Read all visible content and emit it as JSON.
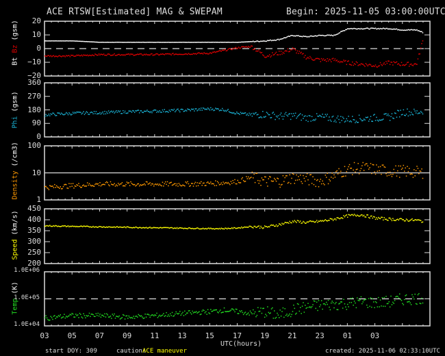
{
  "header": {
    "title": "ACE RTSW[Estimated] MAG & SWEPAM",
    "begin": "Begin: 2025-11-05 03:00:00UTC"
  },
  "footer": {
    "start_doy": "start DOY: 309",
    "caution_label": "caution:",
    "caution_value": "ACE maneuver",
    "created": "created: 2025-11-06 02:33:10UTC",
    "xaxis_label": "UTC(hours)"
  },
  "colors": {
    "bt": "#ffffff",
    "bz": "#e00000",
    "phi": "#1ab2d4",
    "density": "#ff9900",
    "speed": "#ffff00",
    "temp": "#22dd22",
    "axes": "#dddddd"
  },
  "x_ticks": [
    "03",
    "05",
    "07",
    "09",
    "11",
    "13",
    "15",
    "17",
    "19",
    "21",
    "23",
    "01",
    "03"
  ],
  "panels": [
    {
      "id": "mag",
      "ylabel_parts": [
        "Bt",
        "Bz",
        "(gsm)"
      ],
      "ticks": [
        "20",
        "10",
        "0",
        "−10",
        "−20"
      ]
    },
    {
      "id": "phi",
      "ylabel_parts": [
        "Phi",
        "(gsm)"
      ],
      "ticks": [
        "360",
        "270",
        "180",
        "90",
        "0"
      ]
    },
    {
      "id": "density",
      "ylabel_parts": [
        "Density",
        "(/cm3)"
      ],
      "ticks": [
        "100",
        "10",
        "1"
      ]
    },
    {
      "id": "speed",
      "ylabel_parts": [
        "Speed",
        "(km/s)"
      ],
      "ticks": [
        "450",
        "400",
        "350",
        "300",
        "250",
        "200"
      ]
    },
    {
      "id": "temp",
      "ylabel_parts": [
        "Temp",
        "(K)"
      ],
      "ticks": [
        "1.0E+06",
        "1.0E+05",
        "1.0E+04"
      ]
    }
  ],
  "chart_data": [
    {
      "type": "line",
      "title": "Bt / Bz (gsm)",
      "ylabel": "Bt Bz (gsm)",
      "xlabel": "UTC(hours)",
      "ylim": [
        -20,
        20
      ],
      "reference_line": 0,
      "x": [
        0,
        2,
        4,
        6,
        8,
        10,
        12,
        13,
        14,
        15,
        16,
        17,
        18,
        19,
        20,
        21,
        22,
        23,
        24,
        25,
        26,
        27,
        27.5
      ],
      "series": [
        {
          "name": "Bt",
          "values": [
            6,
            6,
            5,
            5,
            5,
            5,
            5,
            5,
            5,
            5.5,
            6,
            7,
            10,
            9,
            10,
            10,
            15,
            15,
            15,
            15,
            14,
            14,
            12
          ]
        },
        {
          "name": "Bz",
          "values": [
            -5,
            -5,
            -4,
            -4,
            -4,
            -3.5,
            -3,
            -1,
            1,
            2,
            -5,
            -3,
            0,
            -6,
            -8,
            -8,
            -10,
            -11,
            -12,
            -10,
            -11,
            -11,
            8
          ]
        }
      ]
    },
    {
      "type": "scatter",
      "title": "Phi (gsm)",
      "ylabel": "Phi (gsm)",
      "ylim": [
        0,
        360
      ],
      "x": [
        0,
        2,
        4,
        6,
        8,
        10,
        12,
        13,
        14,
        15,
        16,
        17,
        18,
        19,
        20,
        21,
        22,
        23,
        24,
        25,
        26,
        27,
        27.5
      ],
      "series": [
        {
          "name": "Phi",
          "values": [
            150,
            160,
            165,
            170,
            175,
            180,
            190,
            185,
            160,
            150,
            155,
            140,
            145,
            130,
            135,
            125,
            120,
            125,
            130,
            135,
            170,
            165,
            180
          ]
        }
      ]
    },
    {
      "type": "scatter",
      "title": "Density (/cm3)",
      "ylabel": "Density (/cm3)",
      "yscale": "log",
      "ylim": [
        1,
        100
      ],
      "reference_line": 10,
      "x": [
        0,
        2,
        4,
        6,
        8,
        10,
        12,
        13,
        14,
        15,
        16,
        17,
        18,
        19,
        20,
        21,
        22,
        23,
        24,
        25,
        26,
        27,
        27.5
      ],
      "series": [
        {
          "name": "Density",
          "values": [
            3,
            3.5,
            4,
            4,
            4,
            4,
            4.2,
            4.5,
            5,
            7,
            5,
            5,
            7,
            6,
            5,
            8,
            14,
            16,
            14,
            12,
            12,
            11,
            10
          ]
        }
      ]
    },
    {
      "type": "scatter",
      "title": "Speed (km/s)",
      "ylabel": "Speed (km/s)",
      "ylim": [
        200,
        450
      ],
      "x": [
        0,
        2,
        4,
        6,
        8,
        10,
        12,
        13,
        14,
        15,
        16,
        17,
        18,
        19,
        20,
        21,
        22,
        23,
        24,
        25,
        26,
        27,
        27.5
      ],
      "series": [
        {
          "name": "Speed",
          "values": [
            375,
            372,
            370,
            368,
            366,
            364,
            362,
            362,
            365,
            372,
            368,
            380,
            395,
            390,
            395,
            405,
            420,
            425,
            410,
            405,
            402,
            400,
            395
          ]
        }
      ]
    },
    {
      "type": "scatter",
      "title": "Temp (K)",
      "ylabel": "Temp (K)",
      "yscale": "log",
      "ylim": [
        10000,
        1000000
      ],
      "reference_line": 100000,
      "x": [
        0,
        2,
        4,
        6,
        8,
        10,
        12,
        13,
        14,
        15,
        16,
        17,
        18,
        19,
        20,
        21,
        22,
        23,
        24,
        25,
        26,
        27,
        27.5
      ],
      "series": [
        {
          "name": "Temp",
          "values": [
            20000,
            25000,
            25000,
            22000,
            25000,
            30000,
            35000,
            40000,
            35000,
            30000,
            35000,
            25000,
            40000,
            50000,
            60000,
            65000,
            70000,
            80000,
            75000,
            80000,
            100000,
            110000,
            110000
          ]
        }
      ]
    }
  ]
}
